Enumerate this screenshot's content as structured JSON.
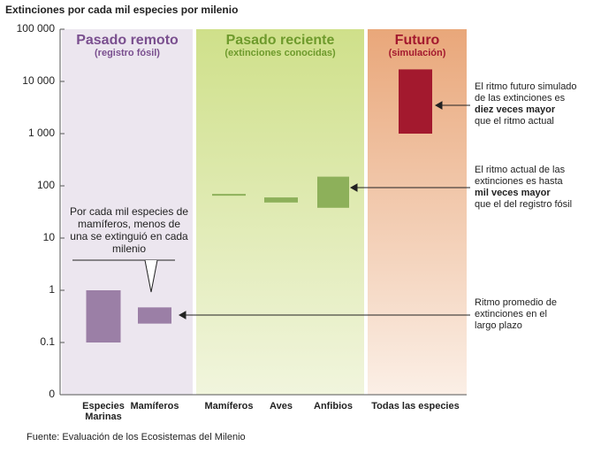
{
  "chart_data": {
    "type": "range-bar",
    "title": "Extinciones por cada mil especies por milenio",
    "log_scale": true,
    "ylim": [
      0.01,
      100000
    ],
    "yticks": [
      {
        "value": 0.01,
        "label": "0"
      },
      0.1,
      1,
      10,
      100,
      {
        "value": 1000,
        "label": "1 000"
      },
      {
        "value": 10000,
        "label": "10 000"
      },
      {
        "value": 100000,
        "label": "100 000"
      }
    ],
    "groups": [
      {
        "title": "Pasado remoto",
        "subtitle": "(registro fósil)",
        "title_color": "#7a4f8f"
      },
      {
        "title": "Pasado reciente",
        "subtitle": "(extinciones conocidas)",
        "title_color": "#6e9a2c"
      },
      {
        "title": "Futuro",
        "subtitle": "(simulación)",
        "title_color": "#a3192e"
      }
    ],
    "categories": [
      "Especies Marinas",
      "Mamíferos",
      "Mamíferos",
      "Aves",
      "Anfibios",
      "Todas las especies"
    ],
    "low": [
      0.1,
      0.23,
      65,
      48,
      38,
      1000
    ],
    "high": [
      1,
      0.47,
      70,
      60,
      150,
      17000
    ],
    "colors": [
      "#9b7fa6",
      "#9b7fa6",
      "#8db05a",
      "#8db05a",
      "#8db05a",
      "#a3192e"
    ],
    "annotations": [
      {
        "before": "El ritmo futuro simulado de las extinciones es",
        "bold": "diez veces mayor",
        "after": "que el ritmo actual"
      },
      {
        "before": "El ritmo actual de las extinciones es hasta",
        "bold": "mil veces mayor",
        "after": "que el del registro fósil"
      },
      {
        "before": "Ritmo promedio de extinciones en el largo plazo",
        "bold": "",
        "after": ""
      }
    ],
    "callout": "Por cada mil especies de mamíferos, menos de una se extinguió en cada milenio",
    "source": "Fuente: Evaluación de los Ecosistemas del Milenio"
  }
}
